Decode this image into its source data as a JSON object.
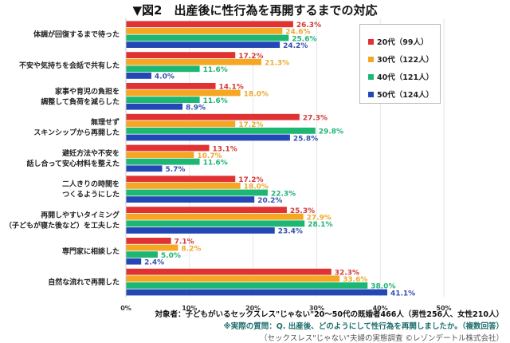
{
  "chart_data": {
    "type": "bar",
    "orientation": "horizontal",
    "title": "▼図2　出産後に性行為を再開するまでの対応",
    "categories": [
      [
        "体調が回復するまで待った"
      ],
      [
        "不安や気持ちを会話で共有した"
      ],
      [
        "家事や育児の負担を",
        "調整して負荷を減らした"
      ],
      [
        "無理せず",
        "スキンシップから再開した"
      ],
      [
        "避妊方法や不安を",
        "話し合って安心材料を整えた"
      ],
      [
        "二人きりの時間を",
        "つくるようにした"
      ],
      [
        "再開しやすいタイミング",
        "（子どもが寝た後など）を工夫した"
      ],
      [
        "専門家に相談した"
      ],
      [
        "自然な流れで再開した"
      ]
    ],
    "series": [
      {
        "name": "20代（99人）",
        "color": "#e03232",
        "label_color": "#d23a3a",
        "values": [
          26.3,
          17.2,
          14.1,
          27.3,
          13.1,
          17.2,
          25.3,
          7.1,
          32.3
        ]
      },
      {
        "name": "30代（122人）",
        "color": "#f5a623",
        "label_color": "#f0a830",
        "values": [
          24.6,
          21.3,
          18.0,
          17.2,
          10.7,
          18.0,
          27.9,
          8.2,
          33.6
        ]
      },
      {
        "name": "40代（121人）",
        "color": "#1cb873",
        "label_color": "#22b477",
        "values": [
          25.6,
          11.6,
          11.6,
          29.8,
          11.6,
          22.3,
          28.1,
          5.0,
          38.0
        ]
      },
      {
        "name": "50代（124人）",
        "color": "#2347b5",
        "label_color": "#3550b0",
        "values": [
          24.2,
          4.0,
          8.9,
          25.8,
          5.7,
          20.2,
          23.4,
          2.4,
          41.1
        ]
      }
    ],
    "xlim": [
      0,
      55
    ],
    "xticks": [
      "0%",
      "10%",
      "20%",
      "30%",
      "40%",
      "50%"
    ],
    "grid": true,
    "legend": "top-right",
    "value_suffix": "%"
  },
  "footer": {
    "target": "対象者：子どもがいるセックスレス\"じゃない\"20～50代の既婚者466人（男性256人、女性210人）",
    "question": "※実際の質問：Q. 出産後、どのようにして性行為を再開しましたか。（複数回答）",
    "source": "（セックスレス\"じゃない\"夫婦の実態調査 ©レゾンデートル株式会社）"
  }
}
